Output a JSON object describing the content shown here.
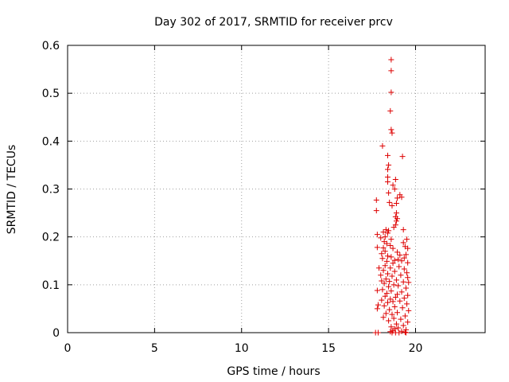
{
  "chart_data": {
    "type": "scatter",
    "title": "Day 302 of 2017, SRMTID for receiver prcv",
    "xlabel": "GPS time / hours",
    "ylabel": "SRMTID / TECUs",
    "xlim": [
      0,
      24
    ],
    "ylim": [
      0,
      0.6
    ],
    "xticks": [
      0,
      5,
      10,
      15,
      20
    ],
    "yticks": [
      0,
      0.1,
      0.2,
      0.3,
      0.4,
      0.5,
      0.6
    ],
    "xtick_labels": [
      "0",
      "5",
      "10",
      "15",
      "20"
    ],
    "ytick_labels": [
      "0",
      "0.1",
      "0.2",
      "0.3",
      "0.4",
      "0.5",
      "0.6"
    ],
    "grid": true,
    "marker": "plus",
    "color": "#dd0000",
    "series": [
      {
        "name": "SRMTID",
        "points": [
          [
            18.6,
            0.57
          ],
          [
            18.6,
            0.547
          ],
          [
            18.6,
            0.502
          ],
          [
            18.55,
            0.463
          ],
          [
            18.6,
            0.424
          ],
          [
            18.65,
            0.417
          ],
          [
            18.1,
            0.39
          ],
          [
            18.4,
            0.37
          ],
          [
            19.25,
            0.368
          ],
          [
            18.45,
            0.35
          ],
          [
            18.4,
            0.341
          ],
          [
            18.4,
            0.325
          ],
          [
            18.85,
            0.32
          ],
          [
            18.4,
            0.315
          ],
          [
            18.7,
            0.308
          ],
          [
            18.8,
            0.3
          ],
          [
            18.45,
            0.292
          ],
          [
            19.1,
            0.288
          ],
          [
            19.2,
            0.283
          ],
          [
            18.95,
            0.281
          ],
          [
            17.75,
            0.277
          ],
          [
            18.5,
            0.272
          ],
          [
            18.9,
            0.27
          ],
          [
            18.65,
            0.265
          ],
          [
            17.75,
            0.255
          ],
          [
            18.9,
            0.25
          ],
          [
            18.85,
            0.242
          ],
          [
            18.95,
            0.238
          ],
          [
            18.9,
            0.233
          ],
          [
            18.85,
            0.225
          ],
          [
            18.75,
            0.22
          ],
          [
            18.3,
            0.215
          ],
          [
            18.45,
            0.213
          ],
          [
            19.3,
            0.215
          ],
          [
            18.15,
            0.21
          ],
          [
            18.4,
            0.208
          ],
          [
            17.8,
            0.205
          ],
          [
            18.25,
            0.2
          ],
          [
            18.0,
            0.198
          ],
          [
            18.6,
            0.195
          ],
          [
            19.5,
            0.195
          ],
          [
            18.2,
            0.19
          ],
          [
            19.3,
            0.188
          ],
          [
            18.35,
            0.186
          ],
          [
            18.55,
            0.182
          ],
          [
            19.4,
            0.18
          ],
          [
            17.8,
            0.178
          ],
          [
            18.15,
            0.177
          ],
          [
            18.7,
            0.176
          ],
          [
            19.55,
            0.176
          ],
          [
            18.25,
            0.17
          ],
          [
            18.95,
            0.168
          ],
          [
            18.05,
            0.165
          ],
          [
            19.45,
            0.163
          ],
          [
            19.1,
            0.162
          ],
          [
            18.4,
            0.16
          ],
          [
            18.6,
            0.158
          ],
          [
            19.35,
            0.156
          ],
          [
            18.1,
            0.155
          ],
          [
            19.0,
            0.153
          ],
          [
            18.8,
            0.151
          ],
          [
            19.2,
            0.15
          ],
          [
            18.35,
            0.149
          ],
          [
            19.55,
            0.146
          ],
          [
            18.7,
            0.145
          ],
          [
            18.25,
            0.14
          ],
          [
            19.05,
            0.138
          ],
          [
            17.9,
            0.135
          ],
          [
            18.55,
            0.135
          ],
          [
            19.35,
            0.133
          ],
          [
            18.15,
            0.13
          ],
          [
            18.8,
            0.128
          ],
          [
            19.5,
            0.125
          ],
          [
            18.4,
            0.123
          ],
          [
            18.0,
            0.12
          ],
          [
            19.15,
            0.12
          ],
          [
            18.65,
            0.118
          ],
          [
            19.55,
            0.115
          ],
          [
            18.3,
            0.112
          ],
          [
            18.9,
            0.11
          ],
          [
            18.05,
            0.108
          ],
          [
            18.5,
            0.107
          ],
          [
            19.3,
            0.106
          ],
          [
            19.6,
            0.105
          ],
          [
            18.2,
            0.103
          ],
          [
            18.75,
            0.1
          ],
          [
            19.0,
            0.098
          ],
          [
            18.45,
            0.096
          ],
          [
            19.45,
            0.093
          ],
          [
            18.1,
            0.09
          ],
          [
            17.8,
            0.088
          ],
          [
            18.6,
            0.087
          ],
          [
            19.2,
            0.085
          ],
          [
            18.35,
            0.082
          ],
          [
            18.95,
            0.08
          ],
          [
            19.55,
            0.078
          ],
          [
            18.25,
            0.076
          ],
          [
            18.85,
            0.074
          ],
          [
            19.35,
            0.072
          ],
          [
            18.55,
            0.07
          ],
          [
            18.05,
            0.068
          ],
          [
            19.1,
            0.066
          ],
          [
            18.7,
            0.065
          ],
          [
            18.4,
            0.063
          ],
          [
            19.5,
            0.06
          ],
          [
            17.85,
            0.058
          ],
          [
            18.2,
            0.056
          ],
          [
            18.8,
            0.054
          ],
          [
            19.25,
            0.052
          ],
          [
            17.8,
            0.05
          ],
          [
            18.5,
            0.048
          ],
          [
            19.6,
            0.046
          ],
          [
            18.95,
            0.042
          ],
          [
            18.3,
            0.04
          ],
          [
            18.65,
            0.038
          ],
          [
            19.4,
            0.035
          ],
          [
            18.15,
            0.032
          ],
          [
            18.75,
            0.03
          ],
          [
            19.15,
            0.028
          ],
          [
            18.45,
            0.025
          ],
          [
            19.55,
            0.022
          ],
          [
            18.9,
            0.018
          ],
          [
            19.3,
            0.015
          ],
          [
            18.6,
            0.012
          ],
          [
            19.0,
            0.01
          ],
          [
            18.8,
            0.008
          ],
          [
            19.45,
            0.006
          ],
          [
            18.7,
            0.004
          ],
          [
            19.2,
            0.003
          ],
          [
            18.55,
            0.002
          ],
          [
            19.4,
            0.001
          ],
          [
            17.7,
            0.0
          ],
          [
            17.85,
            0.0
          ],
          [
            18.65,
            0.0
          ],
          [
            18.85,
            0.0
          ],
          [
            19.05,
            0.0
          ],
          [
            19.45,
            0.0
          ]
        ]
      }
    ]
  }
}
